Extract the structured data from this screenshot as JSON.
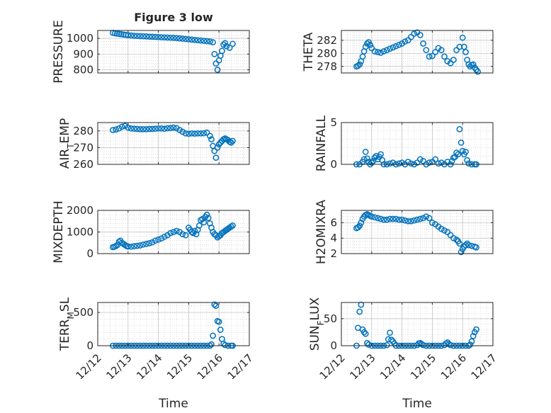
{
  "figure": {
    "title": "Figure 3 low",
    "marker_color": "#0072BD",
    "xlabel": "Time",
    "xticks": [
      "12/12",
      "12/13",
      "12/14",
      "12/15",
      "12/16",
      "12/17"
    ]
  },
  "chart_data": [
    {
      "type": "scatter",
      "ylabel": "PRESSURE",
      "xlim": [
        12.0,
        17.0
      ],
      "ylim": [
        780,
        1050
      ],
      "yticks": [
        800,
        900,
        1000
      ],
      "series": [
        {
          "x": [
            12.5,
            12.57,
            12.64,
            12.71,
            12.78,
            12.85,
            12.92,
            13.0,
            13.1,
            13.2,
            13.3,
            13.4,
            13.5,
            13.6,
            13.7,
            13.8,
            13.9,
            14.0,
            14.1,
            14.2,
            14.3,
            14.4,
            14.5,
            14.6,
            14.7,
            14.8,
            14.9,
            15.0,
            15.1,
            15.2,
            15.3,
            15.4,
            15.5,
            15.6,
            15.7,
            15.8,
            15.85,
            15.9,
            15.95,
            16.0,
            16.05,
            16.1,
            16.15,
            16.2,
            16.25,
            16.35,
            16.45
          ],
          "y": [
            1035,
            1032,
            1030,
            1028,
            1026,
            1024,
            1022,
            1020,
            1018,
            1016,
            1015,
            1014,
            1013,
            1012,
            1011,
            1010,
            1009,
            1008,
            1007,
            1006,
            1005,
            1004,
            1003,
            1002,
            1000,
            998,
            996,
            994,
            992,
            990,
            988,
            986,
            984,
            982,
            980,
            975,
            900,
            840,
            800,
            860,
            890,
            920,
            960,
            970,
            950,
            940,
            965
          ]
        }
      ]
    },
    {
      "type": "scatter",
      "ylabel": "THETA",
      "xlim": [
        12.0,
        17.0
      ],
      "ylim": [
        277,
        283.5
      ],
      "yticks": [
        278,
        280,
        282
      ],
      "series": [
        {
          "x": [
            12.5,
            12.55,
            12.6,
            12.65,
            12.7,
            12.75,
            12.8,
            12.85,
            12.9,
            12.95,
            13.0,
            13.1,
            13.2,
            13.3,
            13.4,
            13.5,
            13.6,
            13.7,
            13.8,
            13.9,
            14.0,
            14.1,
            14.2,
            14.3,
            14.4,
            14.5,
            14.6,
            14.7,
            14.8,
            14.9,
            15.0,
            15.1,
            15.2,
            15.3,
            15.4,
            15.5,
            15.6,
            15.7,
            15.8,
            15.9,
            16.0,
            16.05,
            16.1,
            16.15,
            16.2,
            16.25,
            16.3,
            16.35,
            16.4,
            16.45,
            16.5
          ],
          "y": [
            278,
            278.1,
            278.3,
            278.8,
            279.5,
            280.3,
            281,
            281.5,
            281.7,
            281.3,
            280.8,
            280.3,
            280.2,
            280.1,
            280.3,
            280.5,
            280.7,
            280.9,
            281.1,
            281.3,
            281.5,
            281.8,
            282,
            282.5,
            283,
            283.2,
            282.8,
            281.5,
            280.5,
            279.5,
            279.6,
            280.2,
            280.8,
            280.5,
            279.5,
            278.8,
            278.5,
            279,
            280.5,
            281,
            282.4,
            281,
            280.2,
            279,
            278.3,
            278,
            278.2,
            278.3,
            277.8,
            277.5,
            277.2
          ]
        }
      ]
    },
    {
      "type": "scatter",
      "ylabel": "AIR_TEMP",
      "xlim": [
        12.0,
        17.0
      ],
      "ylim": [
        260,
        285
      ],
      "yticks": [
        260,
        270,
        280
      ],
      "series": [
        {
          "x": [
            12.5,
            12.6,
            12.7,
            12.8,
            12.9,
            13.0,
            13.1,
            13.2,
            13.3,
            13.4,
            13.5,
            13.6,
            13.7,
            13.8,
            13.9,
            14.0,
            14.1,
            14.2,
            14.3,
            14.4,
            14.5,
            14.6,
            14.7,
            14.8,
            14.9,
            15.0,
            15.1,
            15.2,
            15.3,
            15.4,
            15.5,
            15.6,
            15.7,
            15.75,
            15.8,
            15.85,
            15.9,
            15.95,
            16.0,
            16.05,
            16.1,
            16.15,
            16.2,
            16.25,
            16.3,
            16.35,
            16.4,
            16.45
          ],
          "y": [
            280.5,
            280.8,
            281.5,
            282.5,
            283,
            282,
            281.5,
            281.3,
            281.2,
            281,
            281,
            281,
            281.2,
            281.2,
            281.3,
            281.5,
            281.5,
            281.3,
            281.6,
            281.8,
            282,
            281.7,
            280.5,
            279.5,
            278.5,
            278.3,
            278.5,
            278.4,
            278.5,
            278.5,
            278.6,
            279,
            277,
            275,
            271,
            268,
            264,
            270,
            272,
            273,
            274,
            275,
            275.5,
            275,
            274.5,
            273.5,
            273,
            274
          ]
        }
      ]
    },
    {
      "type": "scatter",
      "ylabel": "RAINFALL",
      "xlim": [
        12.0,
        17.0
      ],
      "ylim": [
        0,
        5
      ],
      "yticks": [
        0,
        5
      ],
      "series": [
        {
          "x": [
            12.5,
            12.6,
            12.7,
            12.75,
            12.8,
            12.85,
            12.9,
            12.95,
            13.0,
            13.05,
            13.1,
            13.15,
            13.2,
            13.25,
            13.3,
            13.35,
            13.4,
            13.5,
            13.6,
            13.7,
            13.8,
            13.9,
            14.0,
            14.1,
            14.2,
            14.3,
            14.4,
            14.5,
            14.6,
            14.7,
            14.8,
            14.9,
            15.0,
            15.1,
            15.2,
            15.3,
            15.4,
            15.5,
            15.6,
            15.65,
            15.7,
            15.75,
            15.8,
            15.85,
            15.9,
            15.95,
            16.0,
            16.05,
            16.1,
            16.15,
            16.2,
            16.3,
            16.4,
            16.45
          ],
          "y": [
            0,
            0,
            0.3,
            0.6,
            1.5,
            0.7,
            0.3,
            0,
            0.2,
            0.4,
            0.8,
            1.0,
            0.6,
            0.9,
            1.2,
            0.5,
            0,
            0,
            0.1,
            0.2,
            0,
            0.1,
            0.2,
            0,
            0.3,
            0.1,
            0,
            0.2,
            0.6,
            0.4,
            0,
            0.2,
            0.3,
            0.6,
            0.1,
            0.2,
            0,
            0.3,
            0,
            0.4,
            0.8,
            0.9,
            1.4,
            1.2,
            4.2,
            2.6,
            1.6,
            1.2,
            1.5,
            0.5,
            0.1,
            0,
            0,
            0
          ]
        }
      ]
    },
    {
      "type": "scatter",
      "ylabel": "MIXDEPTH",
      "xlim": [
        12.0,
        17.0
      ],
      "ylim": [
        0,
        2000
      ],
      "yticks": [
        0,
        1000,
        2000
      ],
      "series": [
        {
          "x": [
            12.5,
            12.55,
            12.6,
            12.65,
            12.7,
            12.75,
            12.8,
            12.85,
            12.9,
            12.95,
            13.0,
            13.1,
            13.2,
            13.3,
            13.4,
            13.5,
            13.6,
            13.7,
            13.8,
            13.9,
            14.0,
            14.1,
            14.2,
            14.3,
            14.4,
            14.5,
            14.6,
            14.7,
            14.8,
            14.9,
            15.0,
            15.05,
            15.1,
            15.15,
            15.2,
            15.25,
            15.3,
            15.35,
            15.4,
            15.45,
            15.5,
            15.55,
            15.6,
            15.65,
            15.7,
            15.75,
            15.8,
            15.85,
            15.9,
            15.95,
            16.0,
            16.05,
            16.1,
            16.15,
            16.2,
            16.25,
            16.3,
            16.35,
            16.4,
            16.45
          ],
          "y": [
            300,
            320,
            350,
            400,
            550,
            600,
            500,
            450,
            400,
            350,
            330,
            320,
            340,
            360,
            380,
            420,
            450,
            480,
            520,
            600,
            650,
            700,
            780,
            850,
            950,
            1000,
            1050,
            1000,
            900,
            850,
            1200,
            1100,
            1000,
            950,
            1050,
            900,
            1100,
            1300,
            1550,
            1600,
            1450,
            1700,
            1800,
            1650,
            1400,
            1200,
            1000,
            900,
            850,
            750,
            800,
            850,
            950,
            1000,
            1050,
            1100,
            1150,
            1200,
            1250,
            1300
          ]
        }
      ]
    },
    {
      "type": "scatter",
      "ylabel": "H2OMIXRA",
      "xlim": [
        12.0,
        17.0
      ],
      "ylim": [
        2,
        7.6
      ],
      "yticks": [
        2,
        4,
        6
      ],
      "series": [
        {
          "x": [
            12.5,
            12.55,
            12.6,
            12.65,
            12.7,
            12.75,
            12.8,
            12.85,
            12.9,
            12.95,
            13.0,
            13.1,
            13.2,
            13.3,
            13.4,
            13.5,
            13.6,
            13.7,
            13.8,
            13.9,
            14.0,
            14.1,
            14.2,
            14.3,
            14.4,
            14.5,
            14.6,
            14.7,
            14.8,
            14.9,
            15.0,
            15.1,
            15.2,
            15.3,
            15.4,
            15.5,
            15.6,
            15.7,
            15.8,
            15.85,
            15.9,
            15.95,
            16.0,
            16.05,
            16.1,
            16.15,
            16.2,
            16.3,
            16.4,
            16.45
          ],
          "y": [
            5.3,
            5.4,
            5.6,
            6.0,
            6.5,
            6.8,
            7.0,
            7.1,
            7.0,
            6.9,
            6.8,
            6.7,
            6.6,
            6.5,
            6.4,
            6.4,
            6.5,
            6.5,
            6.5,
            6.4,
            6.4,
            6.3,
            6.2,
            6.2,
            6.3,
            6.4,
            6.5,
            6.6,
            6.8,
            6.6,
            6.0,
            5.8,
            5.5,
            5.2,
            5.0,
            4.8,
            4.4,
            4.0,
            3.8,
            3.6,
            3.3,
            2.2,
            2.6,
            2.9,
            3.1,
            3.3,
            3.1,
            3.0,
            2.9,
            2.8
          ]
        }
      ]
    },
    {
      "type": "scatter",
      "ylabel": "TERR_MSL",
      "xlim": [
        12.0,
        17.0
      ],
      "ylim": [
        0,
        650
      ],
      "yticks": [
        0,
        500
      ],
      "series": [
        {
          "x": [
            12.5,
            12.6,
            12.7,
            12.8,
            12.9,
            13.0,
            13.1,
            13.2,
            13.3,
            13.4,
            13.5,
            13.6,
            13.7,
            13.8,
            13.9,
            14.0,
            14.1,
            14.2,
            14.3,
            14.4,
            14.5,
            14.6,
            14.7,
            14.8,
            14.9,
            15.0,
            15.1,
            15.2,
            15.3,
            15.4,
            15.5,
            15.6,
            15.7,
            15.75,
            15.8,
            15.85,
            15.9,
            15.95,
            16.0,
            16.05,
            16.1,
            16.15,
            16.2,
            16.3,
            16.4,
            16.45
          ],
          "y": [
            0,
            0,
            0,
            0,
            0,
            0,
            0,
            0,
            0,
            0,
            0,
            0,
            0,
            0,
            0,
            0,
            0,
            0,
            0,
            0,
            0,
            0,
            0,
            0,
            0,
            0,
            0,
            0,
            0,
            0,
            0,
            0,
            0,
            20,
            150,
            620,
            600,
            370,
            360,
            240,
            100,
            30,
            10,
            0,
            0,
            0
          ]
        }
      ]
    },
    {
      "type": "scatter",
      "ylabel": "SUN_FLUX",
      "xlim": [
        12.0,
        17.0
      ],
      "ylim": [
        0,
        80
      ],
      "yticks": [
        0,
        50
      ],
      "series": [
        {
          "x": [
            12.5,
            12.55,
            12.6,
            12.65,
            12.7,
            12.75,
            12.8,
            12.85,
            12.9,
            13.0,
            13.1,
            13.2,
            13.3,
            13.4,
            13.5,
            13.55,
            13.6,
            13.65,
            13.7,
            13.75,
            13.8,
            13.9,
            14.0,
            14.1,
            14.2,
            14.3,
            14.4,
            14.5,
            14.55,
            14.6,
            14.65,
            14.7,
            14.8,
            14.9,
            15.0,
            15.1,
            15.2,
            15.3,
            15.4,
            15.45,
            15.5,
            15.55,
            15.6,
            15.7,
            15.8,
            15.9,
            16.0,
            16.1,
            16.2,
            16.25,
            16.3,
            16.35,
            16.4,
            16.45
          ],
          "y": [
            0,
            33,
            63,
            76,
            30,
            25,
            22,
            5,
            2,
            0,
            0,
            0,
            0,
            0,
            1,
            12,
            24,
            11,
            8,
            4,
            0,
            0,
            0,
            0,
            0,
            0,
            0,
            1,
            4,
            5,
            3,
            1,
            0,
            0,
            0,
            0,
            0,
            0,
            1,
            4,
            6,
            3,
            1,
            0,
            0,
            0,
            0,
            0,
            0,
            2,
            8,
            18,
            25,
            30
          ]
        }
      ]
    }
  ]
}
